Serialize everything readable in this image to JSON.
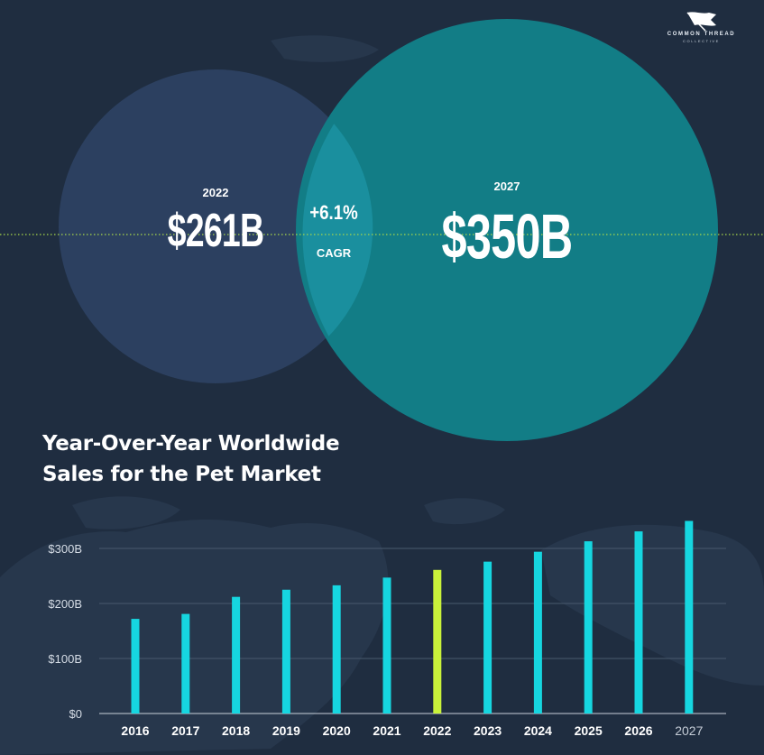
{
  "brand": {
    "name_line1": "COMMON THREAD",
    "name_line2": "COLLECTIVE"
  },
  "colors": {
    "background": "#1f2d40",
    "circle_2022": "#2c4060",
    "circle_2027": "#127d86",
    "overlap": "#1a8f9e",
    "bar": "#16d6e0",
    "bar_highlight": "#c9f23a",
    "gridline": "#4a5a6e",
    "dotted_line": "#a8d84a"
  },
  "venn": {
    "left": {
      "year": "2022",
      "value": "$261B"
    },
    "right": {
      "year": "2027",
      "value": "$350B"
    },
    "overlap": {
      "value": "+6.1%",
      "label": "CAGR"
    }
  },
  "chart_data": {
    "type": "bar",
    "title": "Year-Over-Year Worldwide Sales for the Pet Market",
    "title_lines": [
      "Year-Over-Year Worldwide",
      "Sales for the Pet Market"
    ],
    "categories": [
      "2016",
      "2017",
      "2018",
      "2019",
      "2020",
      "2021",
      "2022",
      "2023",
      "2024",
      "2025",
      "2026",
      "2027"
    ],
    "values": [
      172,
      181,
      212,
      225,
      233,
      247,
      261,
      276,
      294,
      313,
      331,
      350
    ],
    "highlight_category": "2022",
    "y_ticks": [
      0,
      100,
      200,
      300
    ],
    "y_tick_labels": [
      "$0",
      "$100B",
      "$200B",
      "$300B"
    ],
    "ylim": [
      0,
      300
    ],
    "grid": true,
    "xlabel": "",
    "ylabel": ""
  }
}
